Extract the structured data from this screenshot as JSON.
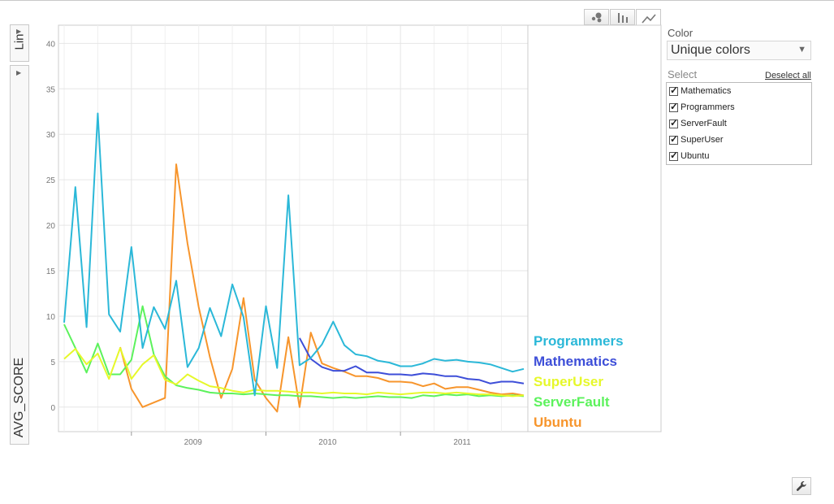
{
  "controls": {
    "y_scale_label": "Lin",
    "y_metric_label": "AVG_SCORE",
    "color_label": "Color",
    "color_value": "Unique colors",
    "select_label": "Select",
    "deselect_label": "Deselect all",
    "items": [
      {
        "label": "Mathematics"
      },
      {
        "label": "Programmers"
      },
      {
        "label": "ServerFault"
      },
      {
        "label": "SuperUser"
      },
      {
        "label": "Ubuntu"
      }
    ],
    "view_icons": [
      "bubble-chart-icon",
      "bar-chart-icon",
      "line-chart-icon"
    ],
    "settings_icon": "wrench-icon"
  },
  "chart_data": {
    "type": "line",
    "title": "",
    "xlabel": "",
    "ylabel": "AVG_SCORE",
    "ylim": [
      -2.7,
      42
    ],
    "yticks": [
      0,
      5,
      10,
      15,
      20,
      25,
      30,
      35,
      40
    ],
    "x_start": "2008-07",
    "x_end": "2011-12",
    "year_ticks": [
      "2009",
      "2010",
      "2011"
    ],
    "x": [
      "2008-07",
      "2008-08",
      "2008-09",
      "2008-10",
      "2008-11",
      "2008-12",
      "2009-01",
      "2009-02",
      "2009-03",
      "2009-04",
      "2009-05",
      "2009-06",
      "2009-07",
      "2009-08",
      "2009-09",
      "2009-10",
      "2009-11",
      "2009-12",
      "2010-01",
      "2010-02",
      "2010-03",
      "2010-04",
      "2010-05",
      "2010-06",
      "2010-07",
      "2010-08",
      "2010-09",
      "2010-10",
      "2010-11",
      "2010-12",
      "2011-01",
      "2011-02",
      "2011-03",
      "2011-04",
      "2011-05",
      "2011-06",
      "2011-07",
      "2011-08",
      "2011-09",
      "2011-10",
      "2011-11",
      "2011-12"
    ],
    "grid": true,
    "legend": "right",
    "series": [
      {
        "name": "Programmers",
        "color": "#2bb8d8",
        "values": [
          9.3,
          24.2,
          8.8,
          32.3,
          10.2,
          8.3,
          17.6,
          6.5,
          11.0,
          8.6,
          13.9,
          4.4,
          6.5,
          10.9,
          7.8,
          13.5,
          9.9,
          1.3,
          11.1,
          4.3,
          23.3,
          4.6,
          5.4,
          6.9,
          9.4,
          6.8,
          5.8,
          5.6,
          5.1,
          4.9,
          4.5,
          4.5,
          4.8,
          5.3,
          5.1,
          5.2,
          5.0,
          4.9,
          4.7,
          4.3,
          3.9,
          4.2
        ]
      },
      {
        "name": "Mathematics",
        "color": "#3d4ed8",
        "values": [
          null,
          null,
          null,
          null,
          null,
          null,
          null,
          null,
          null,
          null,
          null,
          null,
          null,
          null,
          null,
          null,
          null,
          null,
          3.0,
          null,
          null,
          7.6,
          5.3,
          4.4,
          4.0,
          4.0,
          4.5,
          3.8,
          3.8,
          3.6,
          3.6,
          3.5,
          3.7,
          3.6,
          3.4,
          3.4,
          3.1,
          3.0,
          2.6,
          2.8,
          2.8,
          2.6
        ]
      },
      {
        "name": "SuperUser",
        "color": "#e6f82a",
        "values": [
          5.3,
          6.4,
          4.7,
          5.9,
          3.1,
          6.5,
          3.1,
          4.7,
          5.7,
          3.0,
          2.5,
          3.6,
          2.9,
          2.3,
          2.1,
          1.8,
          1.6,
          1.9,
          1.8,
          1.8,
          1.7,
          1.6,
          1.6,
          1.5,
          1.6,
          1.5,
          1.5,
          1.4,
          1.6,
          1.5,
          1.4,
          1.5,
          1.6,
          1.6,
          1.5,
          1.6,
          1.5,
          1.4,
          1.4,
          1.3,
          1.2,
          1.3
        ]
      },
      {
        "name": "ServerFault",
        "color": "#5cf25c",
        "values": [
          9.1,
          6.5,
          3.8,
          7.0,
          3.6,
          3.6,
          5.2,
          11.1,
          5.8,
          3.4,
          2.4,
          2.1,
          1.9,
          1.6,
          1.5,
          1.5,
          1.4,
          1.5,
          1.4,
          1.3,
          1.3,
          1.2,
          1.2,
          1.1,
          1.0,
          1.1,
          1.0,
          1.1,
          1.2,
          1.1,
          1.1,
          1.0,
          1.3,
          1.2,
          1.4,
          1.3,
          1.4,
          1.2,
          1.3,
          1.2,
          1.3,
          1.2
        ]
      },
      {
        "name": "Ubuntu",
        "color": "#f7952c",
        "values": [
          null,
          null,
          null,
          null,
          null,
          6.6,
          2.0,
          0.0,
          0.5,
          1.0,
          26.7,
          18.0,
          11.0,
          5.5,
          1.0,
          4.2,
          12.0,
          3.0,
          1.0,
          -0.5,
          7.7,
          0.0,
          8.2,
          4.8,
          4.3,
          3.9,
          3.4,
          3.4,
          3.2,
          2.8,
          2.8,
          2.7,
          2.3,
          2.6,
          2.0,
          2.2,
          2.2,
          1.9,
          1.6,
          1.4,
          1.5,
          1.3
        ]
      }
    ]
  }
}
